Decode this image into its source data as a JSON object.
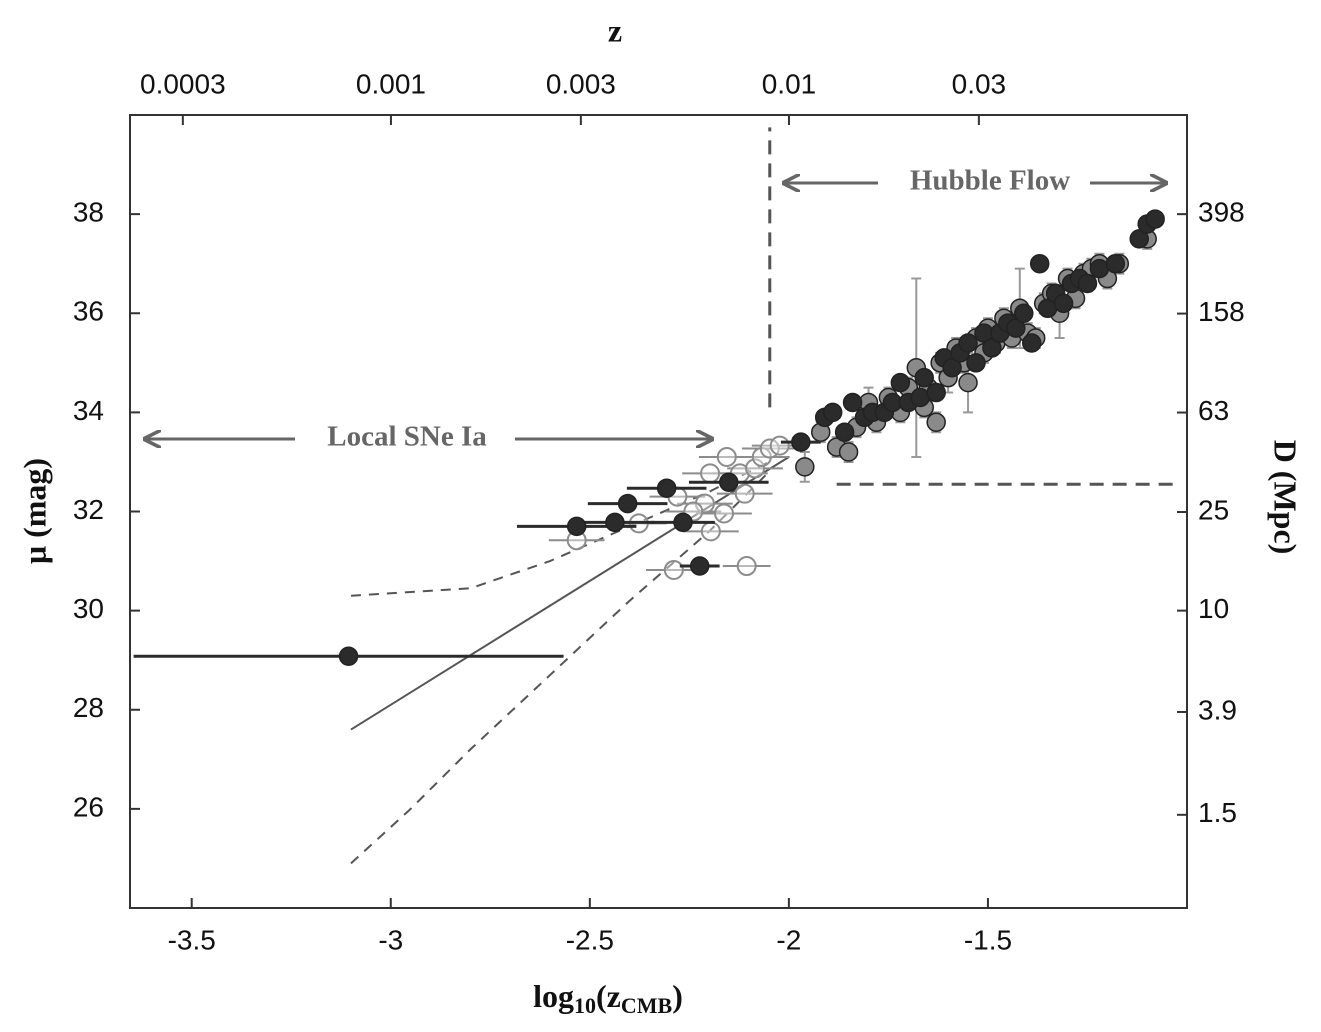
{
  "chart_data": {
    "type": "scatter",
    "x_label_parts": [
      "log",
      "10",
      "(z",
      "CMB",
      ")"
    ],
    "y_label": "μ (mag)",
    "x2_label": "z",
    "y2_label": "D (Mpc)",
    "annotations": [
      "Local SNe Ia",
      "Hubble Flow"
    ],
    "xlim": [
      -3.655,
      -1.0
    ],
    "xticks": [
      -3.5,
      -3.0,
      -2.5,
      -2.0,
      -1.5
    ],
    "ylim": [
      24,
      40
    ],
    "yticks": [
      26,
      28,
      30,
      32,
      34,
      36,
      38
    ],
    "x2lim": [
      0.000221,
      0.1
    ],
    "x2log": true,
    "x2ticks": [
      0.0003,
      0.001,
      0.003,
      0.01,
      0.03
    ],
    "y2lim": [
      0.631,
      1000
    ],
    "y2log": true,
    "y2ticks": [
      1.5,
      3.9,
      10,
      25,
      63,
      158,
      398
    ],
    "reference_lines": [
      {
        "x": -2.048,
        "y": [
          34.1,
          39.75
        ]
      },
      {
        "y": 32.55,
        "x": [
          -1.88,
          -1.02
        ]
      }
    ],
    "curves": [
      {
        "x": [
          -3.1,
          -2.0
        ],
        "y": [
          27.6,
          33.1
        ],
        "dashed": false
      },
      {
        "x": [
          -3.1,
          -2.8,
          -2.6,
          -2.4,
          -2.2,
          -2.05
        ],
        "y": [
          30.3,
          30.45,
          31.0,
          31.7,
          32.4,
          33.0
        ],
        "dashed": true
      },
      {
        "x": [
          -3.1,
          -2.95,
          -2.8,
          -2.6,
          -2.4,
          -2.2,
          -2.05
        ],
        "y": [
          24.9,
          26.0,
          27.2,
          28.7,
          30.2,
          31.6,
          32.8
        ],
        "dashed": true
      }
    ],
    "series": [
      {
        "color": "#8c8c8c",
        "open": true,
        "x": [
          -2.533,
          -2.377,
          -2.289,
          -2.196,
          -2.106,
          -2.156,
          -2.198,
          -2.123,
          -2.085,
          -2.068,
          -2.048,
          -2.023,
          -2.211,
          -2.163,
          -2.111,
          -2.28,
          -2.24
        ],
        "y": [
          31.42,
          31.76,
          30.82,
          31.6,
          30.9,
          33.1,
          32.77,
          32.77,
          32.87,
          33.1,
          33.27,
          33.33,
          32.16,
          31.96,
          32.36,
          32.3,
          32.0
        ],
        "xerr": [
          0.07,
          0.07,
          0.07,
          0.07,
          0.06,
          0.07,
          0.07,
          0.07,
          0.07,
          0.07,
          0.07,
          0.07,
          0.07,
          0.07,
          0.07,
          0.07,
          0.07
        ]
      },
      {
        "color": "#8a8a8a",
        "open": false,
        "x": [
          -1.96,
          -1.92,
          -1.88,
          -1.85,
          -1.83,
          -1.8,
          -1.78,
          -1.75,
          -1.72,
          -1.7,
          -1.68,
          -1.66,
          -1.65,
          -1.63,
          -1.62,
          -1.6,
          -1.58,
          -1.56,
          -1.55,
          -1.53,
          -1.51,
          -1.5,
          -1.48,
          -1.46,
          -1.44,
          -1.42,
          -1.4,
          -1.38,
          -1.36,
          -1.34,
          -1.32,
          -1.3,
          -1.28,
          -1.26,
          -1.24,
          -1.22,
          -1.2,
          -1.17,
          -1.1
        ],
        "y": [
          32.9,
          33.6,
          33.3,
          33.2,
          33.7,
          34.2,
          33.8,
          34.3,
          34.0,
          34.5,
          34.9,
          34.1,
          34.5,
          33.8,
          35.0,
          34.7,
          35.3,
          35.0,
          34.6,
          35.5,
          35.2,
          35.7,
          35.4,
          35.9,
          35.5,
          36.1,
          35.6,
          35.5,
          36.2,
          36.4,
          36.0,
          36.7,
          36.3,
          36.8,
          36.9,
          37.0,
          36.7,
          37.0,
          37.5
        ],
        "yerr": [
          0.3,
          0.2,
          0.2,
          0.2,
          0.2,
          0.3,
          0.2,
          0.2,
          0.2,
          0.2,
          1.8,
          0.2,
          0.2,
          0.2,
          0.2,
          0.3,
          0.2,
          0.2,
          0.6,
          0.2,
          0.2,
          0.2,
          0.2,
          0.2,
          0.2,
          0.8,
          0.2,
          0.2,
          0.2,
          0.2,
          0.5,
          0.2,
          0.2,
          0.2,
          0.2,
          0.2,
          0.2,
          0.2,
          0.2
        ]
      },
      {
        "color": "#2b2b2b",
        "open": false,
        "x": [
          -1.91,
          -1.89,
          -1.86,
          -1.84,
          -1.81,
          -1.79,
          -1.76,
          -1.74,
          -1.72,
          -1.7,
          -1.67,
          -1.66,
          -1.63,
          -1.61,
          -1.59,
          -1.57,
          -1.55,
          -1.53,
          -1.51,
          -1.49,
          -1.47,
          -1.45,
          -1.43,
          -1.41,
          -1.39,
          -1.37,
          -1.35,
          -1.33,
          -1.31,
          -1.29,
          -1.27,
          -1.25,
          -1.22,
          -1.18,
          -1.12,
          -1.1,
          -1.08
        ],
        "y": [
          33.9,
          34.0,
          33.6,
          34.2,
          33.9,
          34.0,
          34.0,
          34.2,
          34.6,
          34.2,
          34.3,
          34.7,
          34.4,
          35.1,
          34.9,
          35.2,
          35.4,
          35.0,
          35.6,
          35.3,
          35.6,
          35.8,
          35.7,
          36.0,
          35.4,
          37.0,
          36.1,
          36.4,
          36.2,
          36.6,
          36.7,
          36.6,
          36.9,
          37.0,
          37.5,
          37.8,
          37.9
        ]
      },
      {
        "color": "#2b2b2b",
        "open": false,
        "x": [
          -3.106,
          -2.533,
          -2.437,
          -2.405,
          -2.307,
          -2.266,
          -2.224,
          -2.151,
          -1.97
        ],
        "y": [
          29.08,
          31.7,
          31.78,
          32.16,
          32.47,
          31.78,
          30.9,
          32.59,
          33.4
        ],
        "xerr": [
          0.54,
          0.15,
          0.1,
          0.1,
          0.1,
          0.08,
          0.05,
          0.1,
          0.05
        ]
      }
    ]
  }
}
